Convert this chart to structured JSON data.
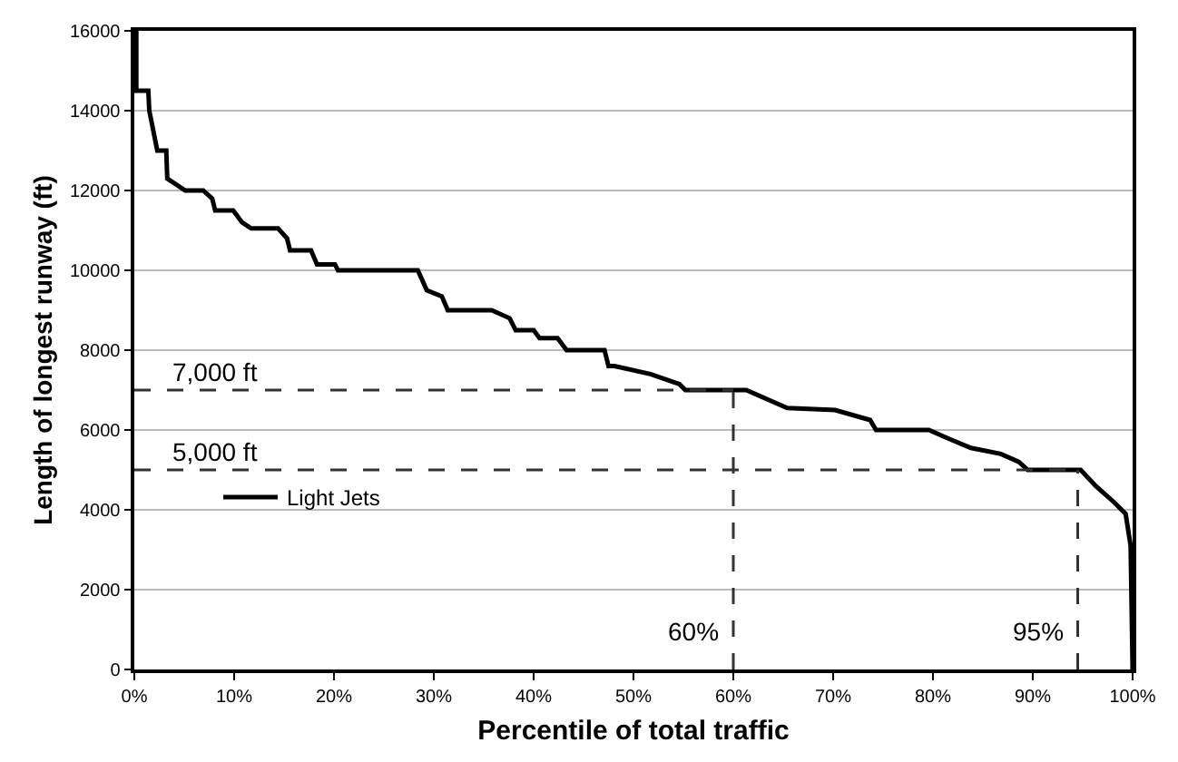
{
  "chart_data": {
    "type": "line",
    "xlabel": "Percentile of total traffic",
    "ylabel": "Length of longest runway (ft)",
    "x": [
      0.2,
      0.2,
      1.4,
      1.5,
      2.3,
      3.2,
      3.3,
      5.1,
      6.9,
      7.8,
      8.1,
      9.9,
      10.8,
      11.7,
      14.4,
      15.3,
      15.6,
      17.7,
      18.3,
      20.1,
      20.4,
      28.4,
      29.3,
      30.8,
      31.4,
      35.8,
      37.6,
      38.2,
      40.0,
      40.6,
      42.4,
      43.3,
      47.1,
      47.5,
      48.1,
      51.7,
      54.6,
      55.2,
      61.3,
      65.4,
      70.2,
      73.7,
      74.3,
      79.6,
      81.4,
      83.8,
      86.8,
      88.6,
      89.5,
      94.8,
      96.3,
      98.1,
      99.3,
      99.8,
      100.0
    ],
    "series": [
      {
        "name": "Light Jets",
        "color": "#000000",
        "values": [
          16000,
          14500,
          14500,
          14000,
          13000,
          13000,
          12300,
          12000,
          12000,
          11800,
          11500,
          11500,
          11200,
          11050,
          11050,
          10800,
          10500,
          10500,
          10150,
          10150,
          10000,
          10000,
          9500,
          9350,
          9000,
          9000,
          8800,
          8500,
          8500,
          8300,
          8300,
          8000,
          8000,
          7600,
          7600,
          7400,
          7150,
          7000,
          7000,
          6550,
          6500,
          6250,
          6000,
          6000,
          5800,
          5550,
          5400,
          5200,
          5000,
          5000,
          4600,
          4200,
          3900,
          3100,
          0
        ]
      }
    ],
    "xlim": [
      0,
      100
    ],
    "xticks": [
      {
        "value": 0,
        "label": "0%"
      },
      {
        "value": 10,
        "label": "10%"
      },
      {
        "value": 20,
        "label": "20%"
      },
      {
        "value": 30,
        "label": "30%"
      },
      {
        "value": 40,
        "label": "40%"
      },
      {
        "value": 50,
        "label": "50%"
      },
      {
        "value": 60,
        "label": "60%"
      },
      {
        "value": 70,
        "label": "70%"
      },
      {
        "value": 80,
        "label": "80%"
      },
      {
        "value": 90,
        "label": "90%"
      },
      {
        "value": 100,
        "label": "100%"
      }
    ],
    "ylim": [
      0,
      16000
    ],
    "yticks": [
      0,
      2000,
      4000,
      6000,
      8000,
      10000,
      12000,
      14000,
      16000
    ],
    "ref_lines": [
      {
        "axis": "y",
        "value": 7000,
        "label": "7,000 ft",
        "color": "#333333",
        "line_style": "dashed"
      },
      {
        "axis": "y",
        "value": 5000,
        "label": "5,000 ft",
        "color": "#333333",
        "line_style": "dashed"
      },
      {
        "axis": "x",
        "value": 60,
        "label": "60%",
        "color": "#333333",
        "line_style": "dashed"
      },
      {
        "axis": "x",
        "value": 94.5,
        "label": "95%",
        "color": "#333333",
        "line_style": "dashed"
      }
    ],
    "grid": "y",
    "legend": "center left",
    "line_style": "solid",
    "marker": "none"
  }
}
